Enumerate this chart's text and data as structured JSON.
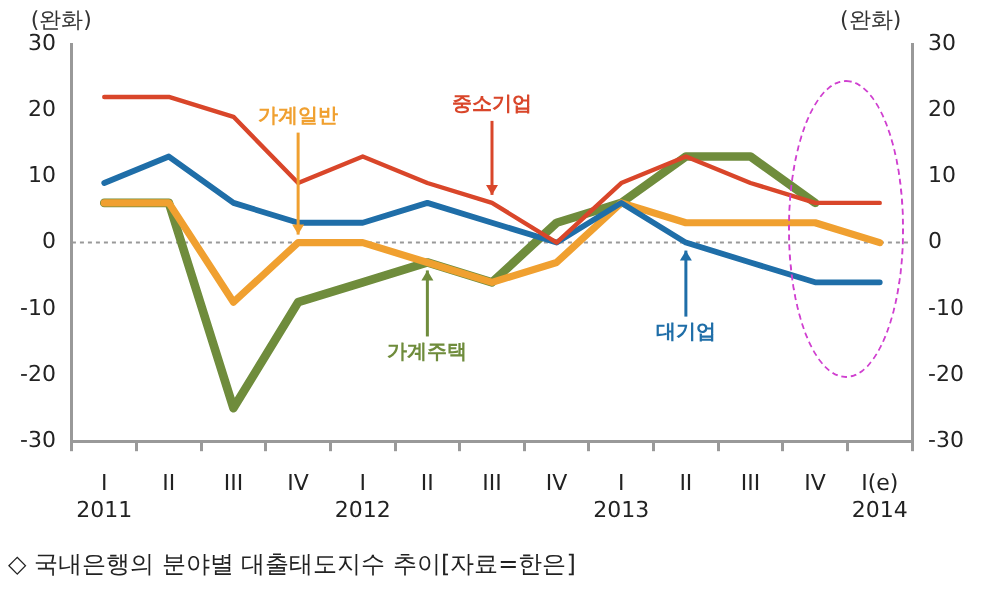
{
  "chart_data": {
    "type": "line",
    "categories": [
      "I\n2011",
      "II",
      "III",
      "IV",
      "I\n2012",
      "II",
      "III",
      "IV",
      "I\n2013",
      "II",
      "III",
      "IV",
      "I(e)\n2014"
    ],
    "series": [
      {
        "name": "중소기업",
        "color": "#d9462a",
        "values": [
          22,
          22,
          19,
          9,
          13,
          9,
          6,
          0,
          9,
          13,
          9,
          6,
          6
        ]
      },
      {
        "name": "대기업",
        "color": "#1f6ea8",
        "values": [
          9,
          13,
          6,
          3,
          3,
          6,
          3,
          0,
          6,
          0,
          -3,
          -6,
          -6
        ]
      },
      {
        "name": "가계일반",
        "color": "#f0a030",
        "values": [
          6,
          6,
          -9,
          0,
          0,
          -3,
          -6,
          -3,
          6,
          3,
          3,
          3,
          0
        ]
      },
      {
        "name": "가계주택",
        "color": "#6f8c3c",
        "values": [
          6,
          6,
          -25,
          -9,
          -6,
          -3,
          -6,
          3,
          6,
          13,
          13,
          6,
          null
        ]
      }
    ],
    "ylabel": "(완화)",
    "y2label": "(완화)",
    "ylim": [
      -30,
      30
    ],
    "yticks": [
      -30,
      -20,
      -10,
      0,
      10,
      20,
      30
    ],
    "y2lim": [
      -30,
      30
    ],
    "y2ticks": [
      -30,
      -20,
      -10,
      0,
      10,
      20,
      30
    ],
    "grid": false,
    "legend": false,
    "marker": "none",
    "line_style": "solid",
    "ref_lines": [
      {
        "axis": "y",
        "value": 0,
        "color": "#999999",
        "line_style": "dotted"
      }
    ],
    "annotations": [
      "◇ 국내은행의 분야별 대출태도지수 추이[자료=한은]"
    ]
  }
}
